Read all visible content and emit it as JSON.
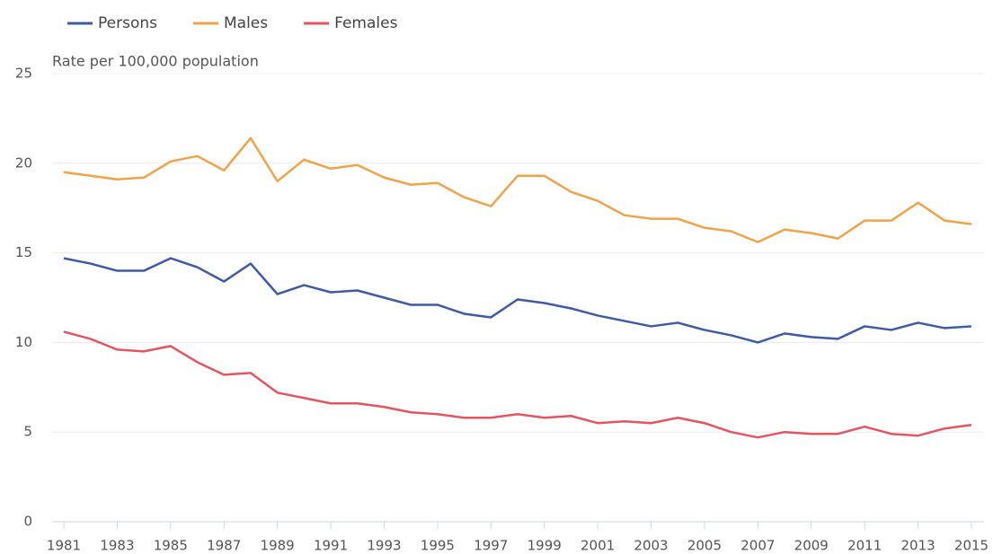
{
  "chart_data": {
    "type": "line",
    "y_axis_label": "Rate per 100,000 population",
    "x": [
      1981,
      1982,
      1983,
      1984,
      1985,
      1986,
      1987,
      1988,
      1989,
      1990,
      1991,
      1992,
      1993,
      1994,
      1995,
      1996,
      1997,
      1998,
      1999,
      2000,
      2001,
      2002,
      2003,
      2004,
      2005,
      2006,
      2007,
      2008,
      2009,
      2010,
      2011,
      2012,
      2013,
      2014,
      2015
    ],
    "xlim": [
      1981,
      2015
    ],
    "xticks": [
      1981,
      1983,
      1985,
      1987,
      1989,
      1991,
      1993,
      1995,
      1997,
      1999,
      2001,
      2003,
      2005,
      2007,
      2009,
      2011,
      2013,
      2015
    ],
    "ylim": [
      0,
      25
    ],
    "yticks": [
      0,
      5,
      10,
      15,
      20,
      25
    ],
    "grid": true,
    "legend": "top-left",
    "series": [
      {
        "name": "Persons",
        "color": "#3f5aa6",
        "values": [
          14.7,
          14.4,
          14.0,
          14.0,
          14.7,
          14.2,
          13.4,
          14.4,
          12.7,
          13.2,
          12.8,
          12.9,
          12.5,
          12.1,
          12.1,
          11.6,
          11.4,
          12.4,
          12.2,
          11.9,
          11.5,
          11.2,
          10.9,
          11.1,
          10.7,
          10.4,
          10.0,
          10.5,
          10.3,
          10.2,
          10.9,
          10.7,
          11.1,
          10.8,
          10.9
        ]
      },
      {
        "name": "Males",
        "color": "#f0a348",
        "values": [
          19.5,
          19.3,
          19.1,
          19.2,
          20.1,
          20.4,
          19.6,
          21.4,
          19.0,
          20.2,
          19.7,
          19.9,
          19.2,
          18.8,
          18.9,
          18.1,
          17.6,
          19.3,
          19.3,
          18.4,
          17.9,
          17.1,
          16.9,
          16.9,
          16.4,
          16.2,
          15.6,
          16.3,
          16.1,
          15.8,
          16.8,
          16.8,
          17.8,
          16.8,
          16.6
        ]
      },
      {
        "name": "Females",
        "color": "#e4555f",
        "values": [
          10.6,
          10.2,
          9.6,
          9.5,
          9.8,
          8.9,
          8.2,
          8.3,
          7.2,
          6.9,
          6.6,
          6.6,
          6.4,
          6.1,
          6.0,
          5.8,
          5.8,
          6.0,
          5.8,
          5.9,
          5.5,
          5.6,
          5.5,
          5.8,
          5.5,
          5.0,
          4.7,
          5.0,
          4.9,
          4.9,
          5.3,
          4.9,
          4.8,
          5.2,
          5.4
        ]
      }
    ]
  }
}
